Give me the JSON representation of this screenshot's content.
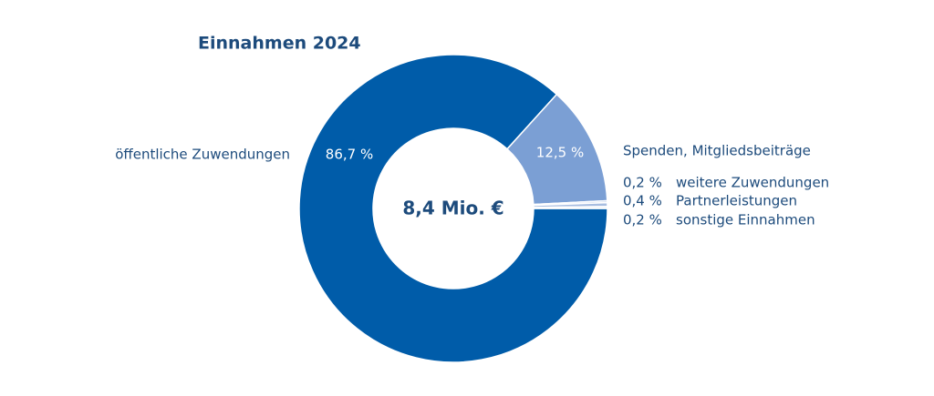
{
  "chart_data": {
    "type": "donut",
    "title": "Einnahmen 2024",
    "center_label": "8,4 Mio. €",
    "categories": [
      "öffentliche Zuwendungen",
      "Spenden, Mitgliedsbeiträge",
      "weitere Zuwendungen",
      "Partnerleistungen",
      "sonstige Einnahmen"
    ],
    "values": [
      86.7,
      12.5,
      0.2,
      0.4,
      0.2
    ],
    "value_labels": [
      "86,7 %",
      "12,5 %",
      "0,2 %",
      "0,4 %",
      "0,2 %"
    ],
    "colors": [
      "#005ca9",
      "#7b9fd4",
      "#c5d3ea",
      "#a7bde0",
      "#dde6f3"
    ]
  }
}
